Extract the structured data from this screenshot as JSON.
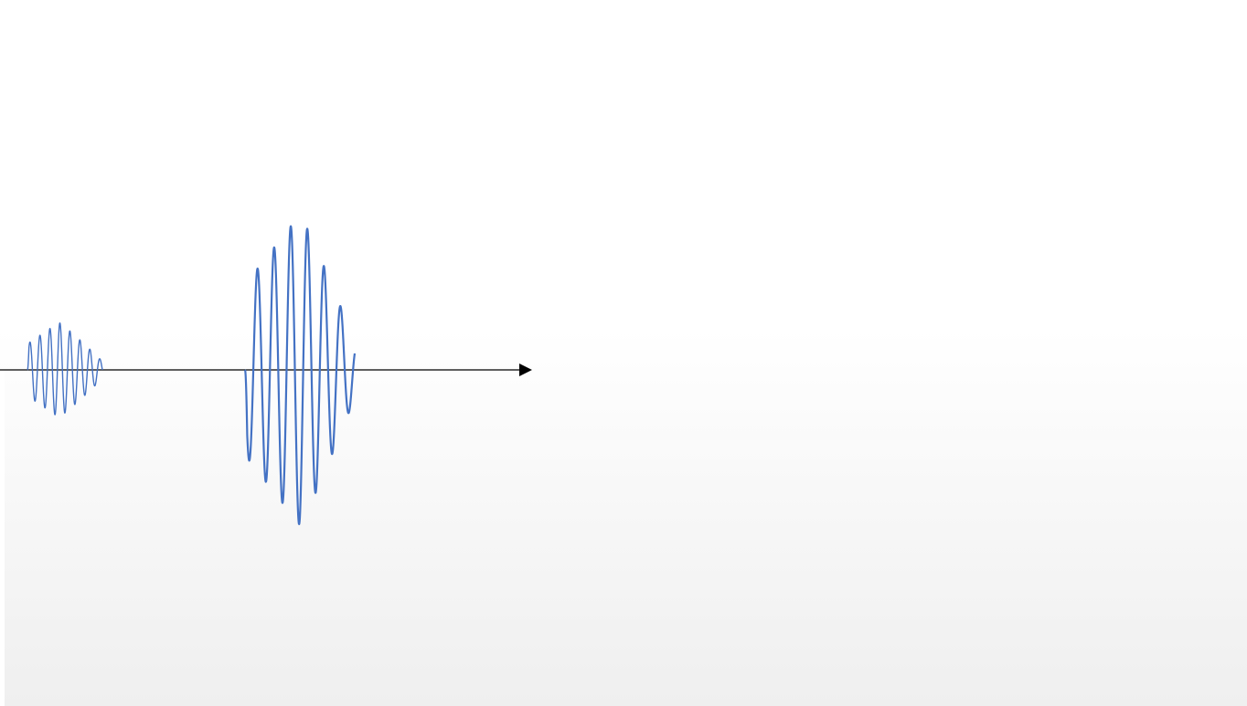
{
  "colors": {
    "wave": "#4472c4",
    "axis": "#000000"
  },
  "diagram": {
    "elements": [
      {
        "kind": "axis-arrow",
        "direction": "right"
      },
      {
        "kind": "wave-packet",
        "relative_amplitude": 0.3,
        "relative_size": "small"
      },
      {
        "kind": "wave-packet",
        "relative_amplitude": 1.0,
        "relative_size": "large"
      }
    ]
  }
}
